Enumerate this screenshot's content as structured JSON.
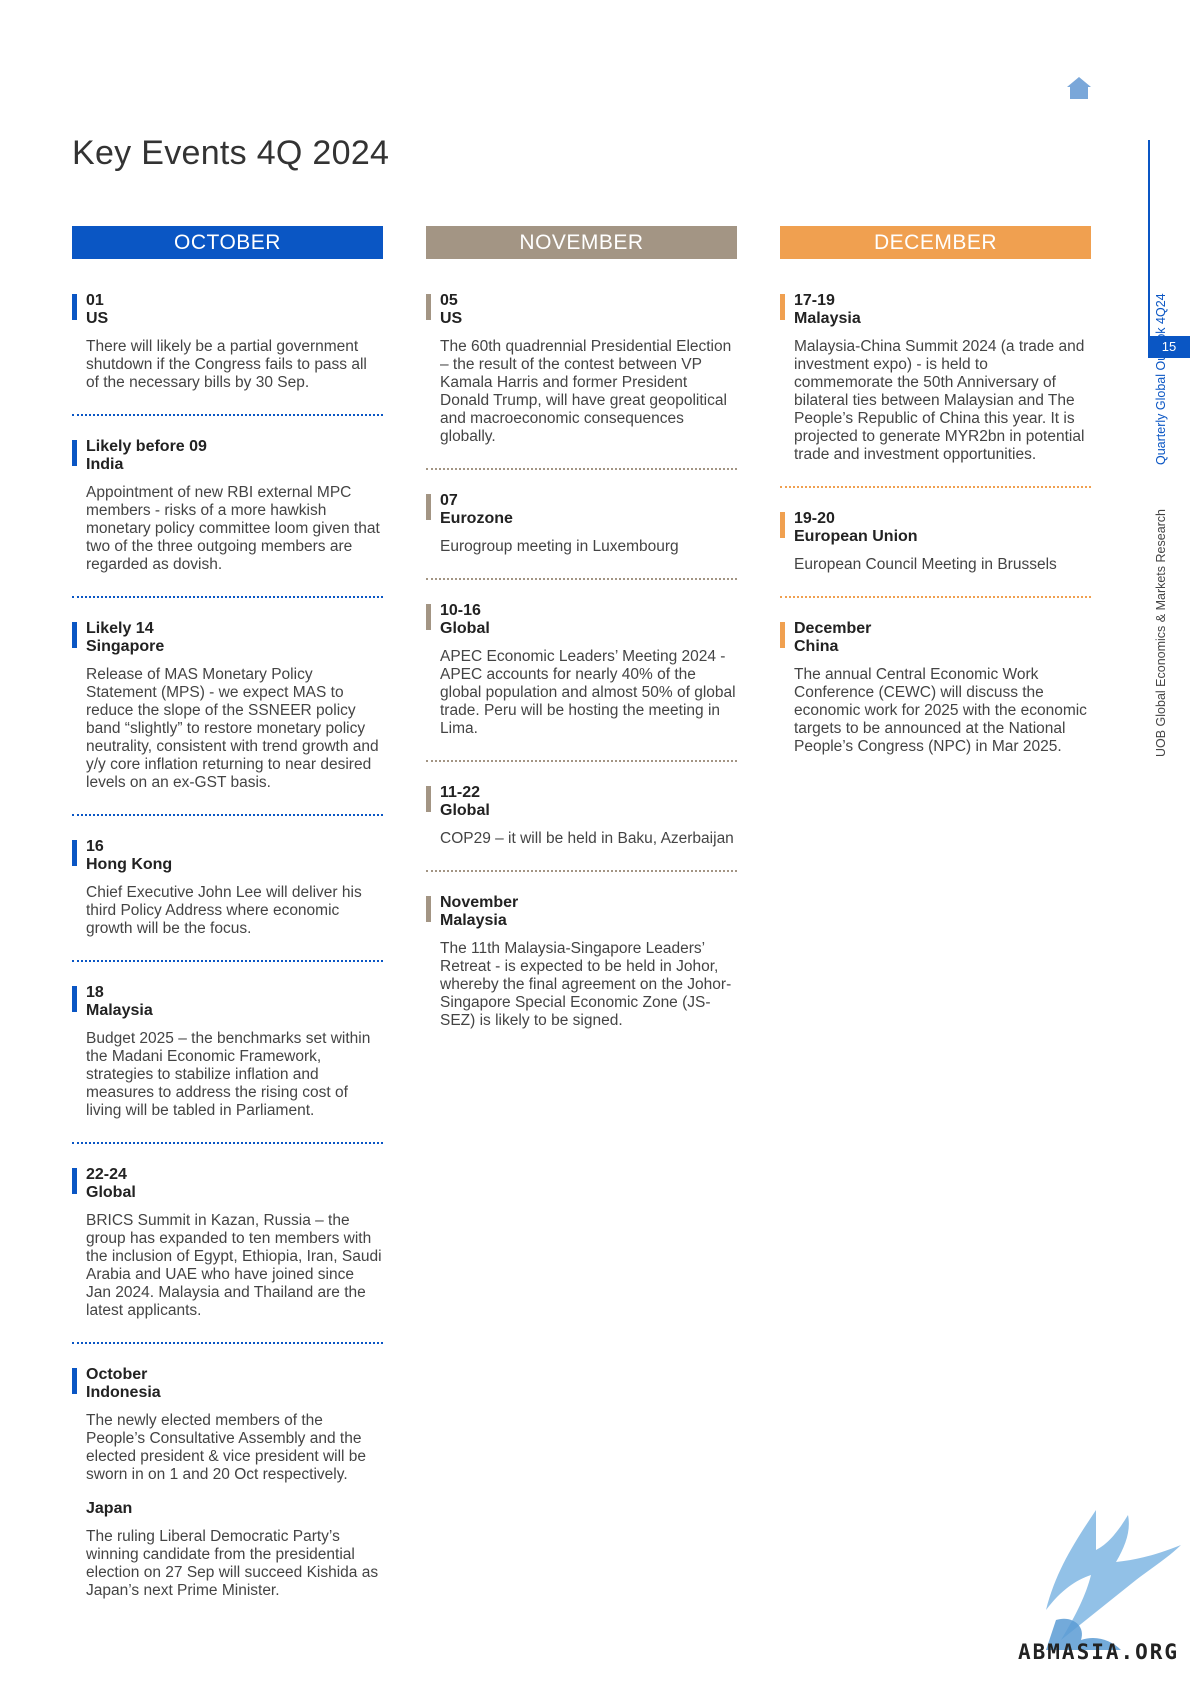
{
  "page": {
    "title": "Key Events 4Q 2024",
    "home_icon": "home-icon"
  },
  "sidebar": {
    "publication": "Quarterly Global Outlook 4Q24",
    "page_number": "15",
    "department": "UOB Global Economics & Markets Research"
  },
  "watermark": {
    "text": "ABMASIA.ORG"
  },
  "colors": {
    "october": "#0a56c4",
    "november": "#a39584",
    "december": "#f0a050"
  },
  "october": {
    "header": "OCTOBER",
    "events": [
      {
        "date": "01",
        "region": "US",
        "desc": "There will likely be a partial government shutdown if the Congress fails to pass all of the necessary bills by 30 Sep."
      },
      {
        "date": "Likely before 09",
        "region": "India",
        "desc": "Appointment of new RBI external MPC members - risks of a more hawkish monetary policy committee loom given that two of the three outgoing members are regarded as dovish."
      },
      {
        "date": "Likely 14",
        "region": "Singapore",
        "desc": "Release of MAS Monetary Policy Statement (MPS) - we expect MAS to reduce the slope of the SSNEER policy band “slightly” to restore monetary policy neutrality, consistent with trend growth and y/y core inflation returning to near desired levels on an ex-GST basis."
      },
      {
        "date": "16",
        "region": "Hong Kong",
        "desc": "Chief Executive John Lee will deliver his third Policy Address where economic growth will be the focus."
      },
      {
        "date": "18",
        "region": "Malaysia",
        "desc": "Budget 2025 – the benchmarks set within the Madani Economic Framework, strategies to stabilize inflation and measures to address the rising cost of living will be tabled in Parliament."
      },
      {
        "date": "22-24",
        "region": "Global",
        "desc": "BRICS Summit in Kazan, Russia – the group has expanded to ten members with the inclusion of Egypt, Ethiopia, Iran, Saudi Arabia and UAE who have joined since Jan 2024. Malaysia and Thailand are the latest applicants."
      },
      {
        "date": "October",
        "region": "Indonesia",
        "desc": "The newly elected members of the People’s Consultative Assembly and the elected president & vice president will be sworn in on 1 and 20 Oct respectively.",
        "sub_region": "Japan",
        "sub_desc": "The ruling Liberal Democratic Party’s winning candidate from the presidential election on 27 Sep will succeed Kishida as Japan’s next Prime Minister."
      }
    ]
  },
  "november": {
    "header": "NOVEMBER",
    "events": [
      {
        "date": "05",
        "region": "US",
        "desc": "The 60th quadrennial Presidential Election – the result of the contest between VP Kamala Harris and former President Donald Trump, will have great geopolitical and macroeconomic consequences globally."
      },
      {
        "date": "07",
        "region": "Eurozone",
        "desc": "Eurogroup meeting in Luxembourg"
      },
      {
        "date": "10-16",
        "region": "Global",
        "desc": "APEC Economic Leaders’ Meeting 2024 - APEC accounts for nearly 40% of the global population and almost 50% of global trade. Peru will be hosting the meeting in Lima."
      },
      {
        "date": "11-22",
        "region": "Global",
        "desc": "COP29 – it will be held in Baku, Azerbaijan"
      },
      {
        "date": "November",
        "region": "Malaysia",
        "desc": "The 11th Malaysia-Singapore Leaders’ Retreat - is expected to be held in Johor, whereby the final agreement on the Johor-Singapore Special Economic Zone (JS-SEZ) is likely to be signed."
      }
    ]
  },
  "december": {
    "header": "DECEMBER",
    "events": [
      {
        "date": "17-19",
        "region": "Malaysia",
        "desc": "Malaysia-China Summit 2024 (a trade and investment expo) - is held to commemorate the 50th Anniversary of bilateral ties between Malaysian and The People’s Republic of China this year. It is projected to generate MYR2bn in potential trade and investment opportunities."
      },
      {
        "date": "19-20",
        "region": "European Union",
        "desc": "European Council Meeting in Brussels"
      },
      {
        "date": "December",
        "region": "China",
        "desc": "The annual Central Economic Work Conference (CEWC) will discuss the economic work for 2025 with the economic targets to be announced at the National People’s Congress (NPC) in Mar 2025."
      }
    ]
  }
}
